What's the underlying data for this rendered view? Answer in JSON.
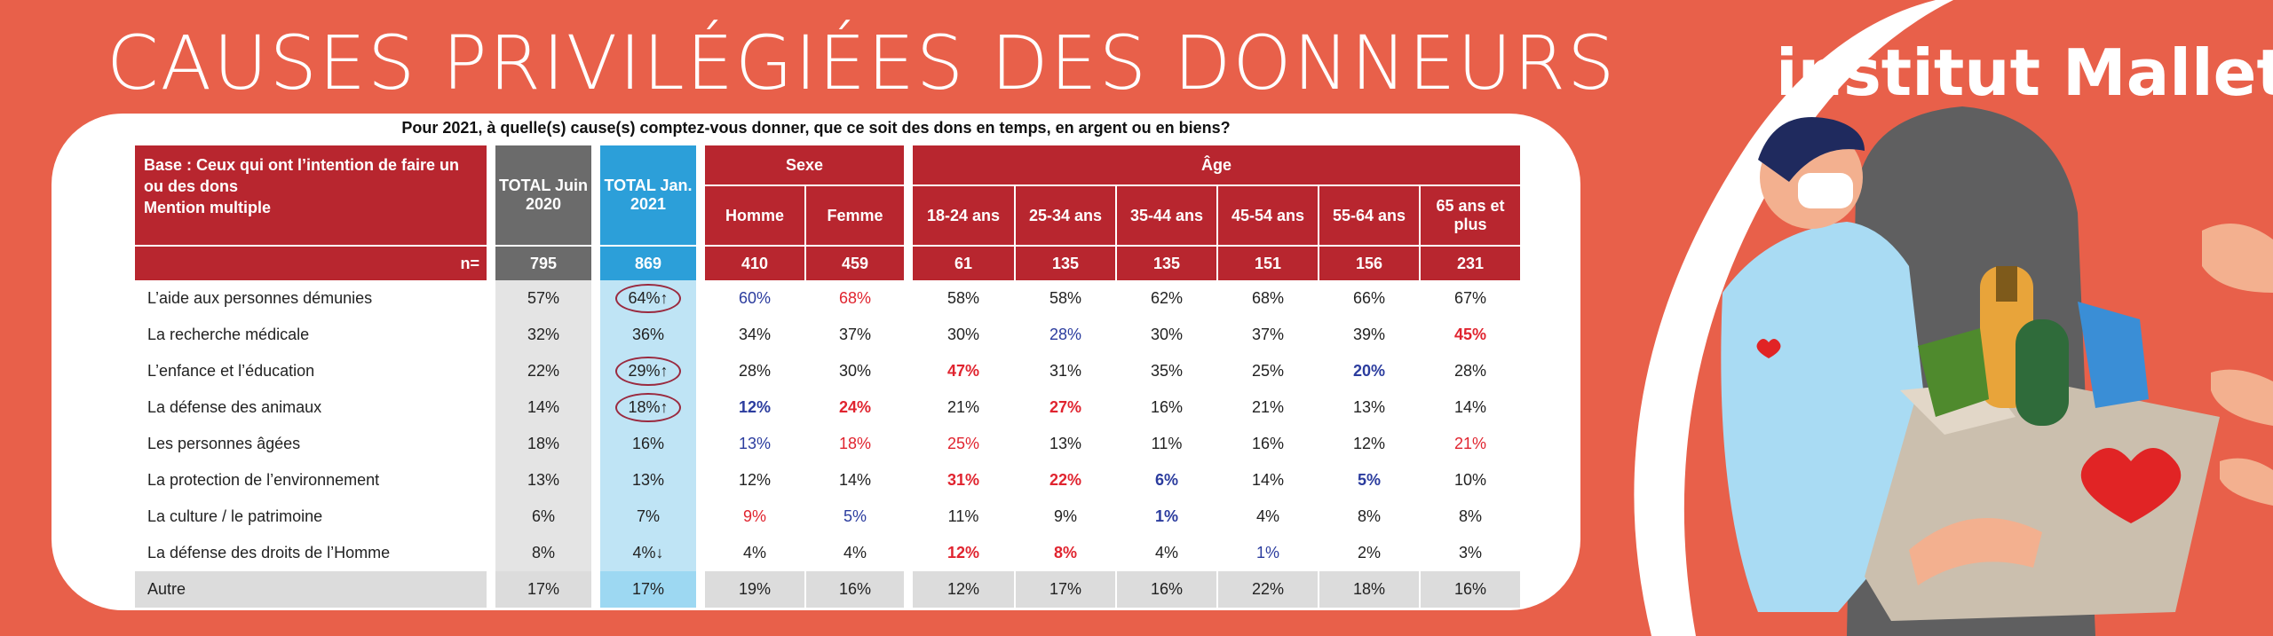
{
  "title": "CAUSES PRIVILÉGIÉES DES DONNEURS",
  "brand": "institut Mallet",
  "question": "Pour 2021, à quelle(s) cause(s) comptez-vous donner, que ce soit des dons en temps, en argent ou en biens?",
  "table": {
    "base_label": "Base : Ceux qui ont l’intention de faire un ou des dons",
    "base_note": "Mention multiple",
    "total_2020": "TOTAL Juin 2020",
    "total_2021": "TOTAL Jan. 2021",
    "group_sexe": "Sexe",
    "group_age": "Âge",
    "cols": [
      "Homme",
      "Femme",
      "18-24 ans",
      "25-34 ans",
      "35-44 ans",
      "45-54 ans",
      "55-64 ans",
      "65 ans et plus"
    ],
    "n_label": "n=",
    "n": [
      "795",
      "869",
      "410",
      "459",
      "61",
      "135",
      "135",
      "151",
      "156",
      "231"
    ],
    "rows": [
      {
        "label": "L’aide aux personnes démunies",
        "v": [
          "57%",
          "64%↑",
          "60%",
          "68%",
          "58%",
          "58%",
          "62%",
          "68%",
          "66%",
          "67%"
        ]
      },
      {
        "label": "La recherche médicale",
        "v": [
          "32%",
          "36%",
          "34%",
          "37%",
          "30%",
          "28%",
          "30%",
          "37%",
          "39%",
          "45%"
        ]
      },
      {
        "label": "L’enfance et l’éducation",
        "v": [
          "22%",
          "29%↑",
          "28%",
          "30%",
          "47%",
          "31%",
          "35%",
          "25%",
          "20%",
          "28%"
        ]
      },
      {
        "label": "La défense des animaux",
        "v": [
          "14%",
          "18%↑",
          "12%",
          "24%",
          "21%",
          "27%",
          "16%",
          "21%",
          "13%",
          "14%"
        ]
      },
      {
        "label": "Les personnes âgées",
        "v": [
          "18%",
          "16%",
          "13%",
          "18%",
          "25%",
          "13%",
          "11%",
          "16%",
          "12%",
          "21%"
        ]
      },
      {
        "label": "La protection de l’environnement",
        "v": [
          "13%",
          "13%",
          "12%",
          "14%",
          "31%",
          "22%",
          "6%",
          "14%",
          "5%",
          "10%"
        ]
      },
      {
        "label": "La culture / le patrimoine",
        "v": [
          "6%",
          "7%",
          "9%",
          "5%",
          "11%",
          "9%",
          "1%",
          "4%",
          "8%",
          "8%"
        ]
      },
      {
        "label": "La défense des droits de l’Homme",
        "v": [
          "8%",
          "4%↓",
          "4%",
          "4%",
          "12%",
          "8%",
          "4%",
          "1%",
          "2%",
          "3%"
        ]
      },
      {
        "label": "Autre",
        "v": [
          "17%",
          "17%",
          "19%",
          "16%",
          "12%",
          "17%",
          "16%",
          "22%",
          "18%",
          "16%"
        ]
      }
    ]
  },
  "colors": {
    "background": "#e8604a",
    "header_red": "#b8262f",
    "total2020": "#6b6b6b",
    "total2021": "#2c9fd9",
    "sig_blue": "#2b3c9e",
    "sig_red": "#e0242f"
  }
}
